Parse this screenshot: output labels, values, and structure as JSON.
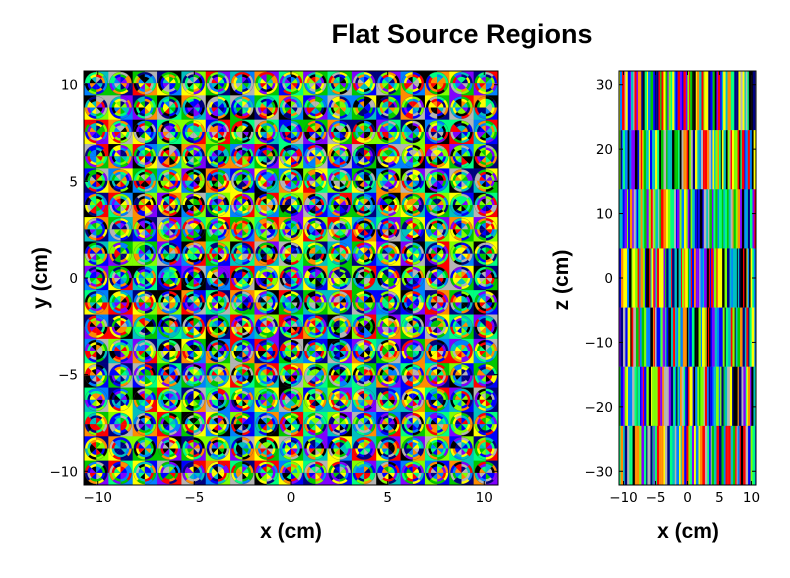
{
  "chart_data": [
    {
      "type": "heatmap",
      "title": "Flat Source Regions",
      "view": "x-y",
      "xlabel": "x (cm)",
      "ylabel": "y (cm)",
      "xlim": [
        -10.71,
        10.71
      ],
      "ylim": [
        -10.71,
        10.71
      ],
      "xticks": [
        -10,
        -5,
        0,
        5,
        10
      ],
      "yticks": [
        -10,
        -5,
        0,
        5,
        10
      ],
      "xtick_labels": [
        "−10",
        "−5",
        "0",
        "5",
        "10"
      ],
      "ytick_labels": [
        "−10",
        "−5",
        "0",
        "5",
        "10"
      ],
      "lattice": {
        "rows": 17,
        "cols": 17,
        "pitch": 1.26
      },
      "grid": false,
      "legend": "none",
      "colormap": [
        "#ff0000",
        "#ff8c00",
        "#ffff00",
        "#80ff00",
        "#00c800",
        "#00ff80",
        "#00c0c0",
        "#0080ff",
        "#0000ff",
        "#8000ff",
        "#000080",
        "#b4b4b4",
        "#000000"
      ]
    },
    {
      "type": "heatmap",
      "view": "x-z",
      "xlabel": "x (cm)",
      "ylabel": "z (cm)",
      "xlim": [
        -10.71,
        10.71
      ],
      "ylim": [
        -32.13,
        32.13
      ],
      "xticks": [
        -10,
        -5,
        0,
        5,
        10
      ],
      "yticks": [
        -30,
        -20,
        -10,
        0,
        10,
        20,
        30
      ],
      "xtick_labels": [
        "−10",
        "−5",
        "0",
        "5",
        "10"
      ],
      "ytick_labels": [
        "−30",
        "−20",
        "−10",
        "0",
        "10",
        "20",
        "30"
      ],
      "axial_layers": 7,
      "grid": false,
      "legend": "none"
    }
  ]
}
